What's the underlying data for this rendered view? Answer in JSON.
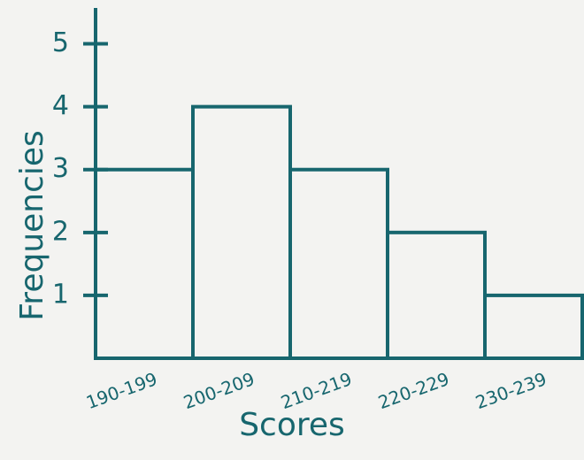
{
  "chart_data": {
    "type": "bar",
    "categories": [
      "190-199",
      "200-209",
      "210-219",
      "220-229",
      "230-239"
    ],
    "values": [
      3,
      4,
      3,
      2,
      1
    ],
    "color": "#17666e",
    "x_label": "Scores",
    "y_label": "Frequencies",
    "ylim": [
      0,
      5.5
    ],
    "yticks": [
      1,
      2,
      3,
      4,
      5
    ]
  }
}
